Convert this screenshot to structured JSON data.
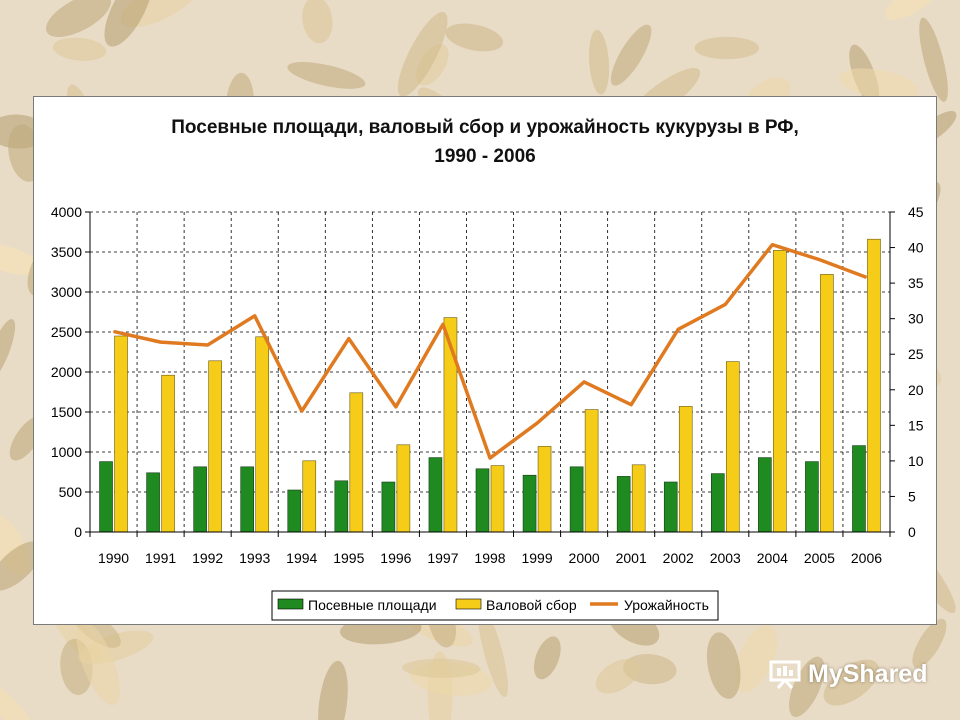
{
  "colors": {
    "area_bar": "#1f8a1f",
    "gross_bar": "#f5cc18",
    "yield_line": "#e07a20",
    "background": "#e9dcc7",
    "grain": "#c9a878"
  },
  "chart_data": {
    "type": "bar+line",
    "title": "Посевные площади, валовый сбор и урожайность кукурузы в РФ,",
    "subtitle": "1990 - 2006",
    "categories": [
      "1990",
      "1991",
      "1992",
      "1993",
      "1994",
      "1995",
      "1996",
      "1997",
      "1998",
      "1999",
      "2000",
      "2001",
      "2002",
      "2003",
      "2004",
      "2005",
      "2006"
    ],
    "left_axis": {
      "min": 0,
      "max": 4000,
      "step": 500,
      "ticks": [
        "0",
        "500",
        "1000",
        "1500",
        "2000",
        "2500",
        "3000",
        "3500",
        "4000"
      ]
    },
    "right_axis": {
      "min": 0,
      "max": 45,
      "step": 5,
      "ticks": [
        "0",
        "5",
        "10",
        "15",
        "20",
        "25",
        "30",
        "35",
        "40",
        "45"
      ]
    },
    "grid": true,
    "legend_position": "bottom",
    "series": [
      {
        "name": "Посевные площади",
        "type": "bar",
        "axis": "left",
        "values": [
          880,
          740,
          815,
          815,
          525,
          640,
          625,
          930,
          790,
          710,
          815,
          695,
          625,
          730,
          930,
          880,
          1080
        ]
      },
      {
        "name": "Валовой сбор",
        "type": "bar",
        "axis": "left",
        "values": [
          2450,
          1960,
          2140,
          2440,
          890,
          1740,
          1090,
          2680,
          830,
          1070,
          1530,
          840,
          1570,
          2130,
          3520,
          3220,
          3660
        ]
      },
      {
        "name": "Урожайность",
        "type": "line",
        "axis": "right",
        "values": [
          28.2,
          26.7,
          26.3,
          30.4,
          17.0,
          27.2,
          17.6,
          29.2,
          10.4,
          15.3,
          21.1,
          17.9,
          28.5,
          32.0,
          40.4,
          38.3,
          35.8
        ]
      }
    ]
  },
  "watermark": {
    "text": "MyShared",
    "icon": "presentation-icon"
  }
}
